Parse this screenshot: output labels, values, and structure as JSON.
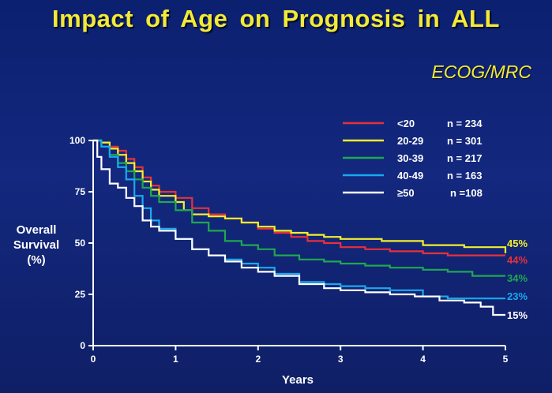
{
  "title": "Impact of Age on Prognosis in ALL",
  "subtitle": "ECOG/MRC",
  "ylabel_lines": [
    "Overall",
    "Survival",
    "(%)"
  ],
  "colors": {
    "lt20": "#e8303a",
    "a20_29": "#f5f02a",
    "a30_39": "#1fa84f",
    "a40_49": "#19a9f0",
    "ge50": "#ffffff",
    "title": "#f2ea35"
  },
  "chart_data": {
    "type": "line",
    "title": "Impact of Age on Prognosis in ALL",
    "subtitle": "ECOG/MRC",
    "xlabel": "Years",
    "ylabel": "Overall Survival (%)",
    "xlim": [
      0,
      5
    ],
    "ylim": [
      0,
      100
    ],
    "xticks": [
      0,
      1,
      2,
      3,
      4,
      5
    ],
    "yticks": [
      0,
      25,
      50,
      75,
      100
    ],
    "grid": false,
    "legend_position": "top-right",
    "series": [
      {
        "key": "lt20",
        "name": "<20",
        "n_label": "n = 234",
        "color": "#e8303a",
        "end_label": "44%",
        "x": [
          0,
          0.1,
          0.2,
          0.3,
          0.4,
          0.5,
          0.6,
          0.7,
          0.8,
          1.0,
          1.2,
          1.4,
          1.6,
          1.8,
          2.0,
          2.2,
          2.4,
          2.6,
          2.8,
          3.0,
          3.3,
          3.6,
          4.0,
          4.3,
          4.6,
          5.0
        ],
        "y": [
          100,
          99,
          97,
          95,
          91,
          87,
          82,
          78,
          75,
          72,
          67,
          64,
          62,
          60,
          57,
          55,
          53,
          51,
          50,
          48,
          47,
          46,
          45,
          44,
          44,
          44
        ]
      },
      {
        "key": "a20_29",
        "name": "20-29",
        "n_label": "n = 301",
        "color": "#f5f02a",
        "end_label": "45%",
        "x": [
          0,
          0.1,
          0.2,
          0.3,
          0.4,
          0.5,
          0.6,
          0.7,
          0.8,
          1.0,
          1.1,
          1.2,
          1.4,
          1.6,
          1.8,
          2.0,
          2.2,
          2.4,
          2.6,
          2.8,
          3.0,
          3.5,
          4.0,
          4.5,
          4.8,
          5.0
        ],
        "y": [
          100,
          99,
          96,
          93,
          89,
          85,
          80,
          76,
          73,
          70,
          66,
          64,
          63,
          62,
          60,
          58,
          56,
          55,
          54,
          53,
          52,
          51,
          49,
          48,
          48,
          45
        ]
      },
      {
        "key": "a30_39",
        "name": "30-39",
        "n_label": "n = 217",
        "color": "#1fa84f",
        "end_label": "34%",
        "x": [
          0,
          0.1,
          0.2,
          0.3,
          0.4,
          0.5,
          0.6,
          0.7,
          0.8,
          1.0,
          1.2,
          1.4,
          1.6,
          1.8,
          2.0,
          2.2,
          2.5,
          2.8,
          3.0,
          3.3,
          3.6,
          4.0,
          4.3,
          4.6,
          5.0
        ],
        "y": [
          100,
          97,
          93,
          89,
          85,
          81,
          77,
          73,
          70,
          66,
          60,
          56,
          51,
          49,
          47,
          44,
          42,
          41,
          40,
          39,
          38,
          37,
          36,
          34,
          34
        ]
      },
      {
        "key": "a40_49",
        "name": "40-49",
        "n_label": "n = 163",
        "color": "#19a9f0",
        "end_label": "23%",
        "x": [
          0,
          0.1,
          0.2,
          0.3,
          0.4,
          0.5,
          0.6,
          0.7,
          0.8,
          1.0,
          1.2,
          1.4,
          1.6,
          1.8,
          2.0,
          2.2,
          2.5,
          2.8,
          3.0,
          3.3,
          3.6,
          4.0,
          4.3,
          4.6,
          5.0
        ],
        "y": [
          100,
          97,
          92,
          87,
          81,
          73,
          67,
          61,
          57,
          52,
          47,
          44,
          42,
          40,
          38,
          35,
          31,
          30,
          29,
          28,
          27,
          24,
          23,
          23,
          23
        ]
      },
      {
        "key": "ge50",
        "name": "≥50",
        "n_label": "n =108",
        "color": "#ffffff",
        "end_label": "15%",
        "x": [
          0,
          0.05,
          0.1,
          0.2,
          0.3,
          0.4,
          0.5,
          0.6,
          0.7,
          0.8,
          1.0,
          1.2,
          1.4,
          1.6,
          1.8,
          2.0,
          2.2,
          2.5,
          2.8,
          3.0,
          3.3,
          3.6,
          3.9,
          4.2,
          4.5,
          4.7,
          4.85,
          5.0
        ],
        "y": [
          100,
          92,
          86,
          79,
          77,
          72,
          68,
          61,
          58,
          56,
          52,
          47,
          44,
          41,
          38,
          36,
          34,
          30,
          28,
          27,
          26,
          25,
          24,
          22,
          21,
          19,
          15,
          15
        ]
      }
    ]
  }
}
